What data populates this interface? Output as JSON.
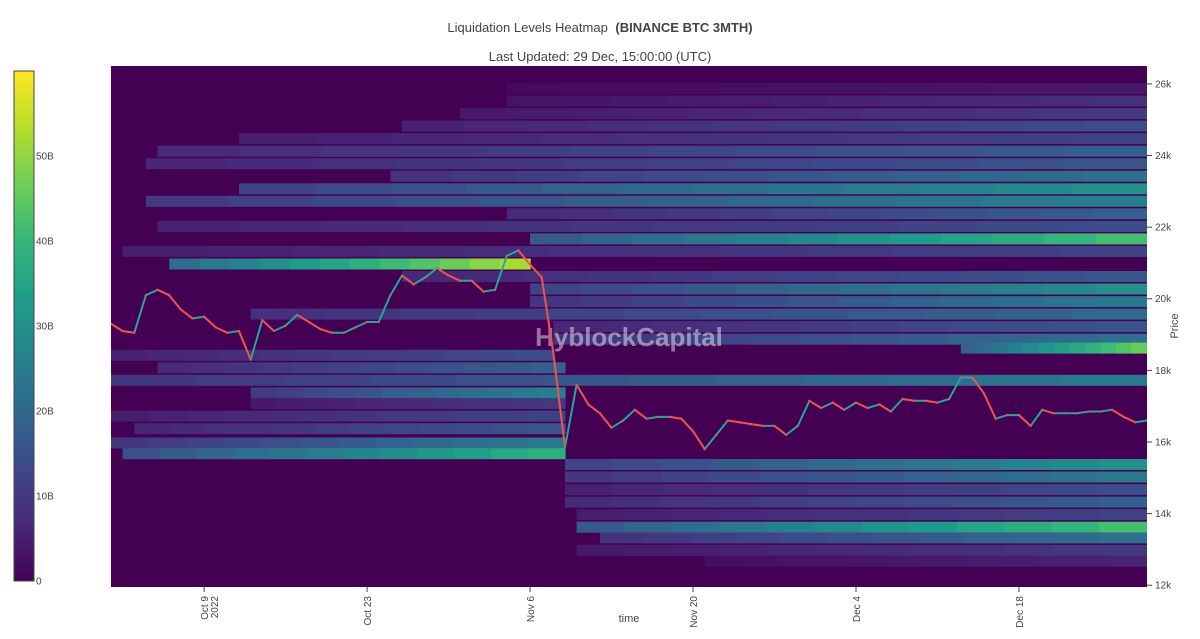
{
  "chart_data": {
    "type": "heatmap",
    "title": "Liquidation Levels Heatmap",
    "title_bold": "(BINANCE BTC 3MTH)",
    "subtitle": "Last Updated: 29 Dec, 15:00:00 (UTC)",
    "watermark": "HyblockCapital",
    "xlabel": "time",
    "ylabel": "Price",
    "x_range": [
      "2022-10-01",
      "2022-12-29"
    ],
    "x_ticks": [
      {
        "date": "2022-10-09",
        "label": "Oct 9",
        "sublabel": "2022"
      },
      {
        "date": "2022-10-23",
        "label": "Oct 23",
        "sublabel": ""
      },
      {
        "date": "2022-11-06",
        "label": "Nov 6",
        "sublabel": ""
      },
      {
        "date": "2022-11-20",
        "label": "Nov 20",
        "sublabel": ""
      },
      {
        "date": "2022-12-04",
        "label": "Dec 4",
        "sublabel": ""
      },
      {
        "date": "2022-12-18",
        "label": "Dec 18",
        "sublabel": ""
      }
    ],
    "y_range": [
      11950,
      26500
    ],
    "y_ticks": [
      {
        "value": 12000,
        "label": "12k"
      },
      {
        "value": 14000,
        "label": "14k"
      },
      {
        "value": 16000,
        "label": "16k"
      },
      {
        "value": 18000,
        "label": "18k"
      },
      {
        "value": 20000,
        "label": "20k"
      },
      {
        "value": 22000,
        "label": "22k"
      },
      {
        "value": 24000,
        "label": "24k"
      },
      {
        "value": 26000,
        "label": "26k"
      }
    ],
    "colorbar": {
      "range": [
        0,
        60
      ],
      "ticks": [
        {
          "value": 0,
          "label": "0"
        },
        {
          "value": 10,
          "label": "10B"
        },
        {
          "value": 20,
          "label": "20B"
        },
        {
          "value": 30,
          "label": "30B"
        },
        {
          "value": 40,
          "label": "40B"
        },
        {
          "value": 50,
          "label": "50B"
        }
      ],
      "colors": [
        "#440154",
        "#482878",
        "#3e4989",
        "#31688e",
        "#26828e",
        "#1f9e89",
        "#35b779",
        "#6ece58",
        "#b5de2b",
        "#fde725"
      ]
    },
    "background_color": "#440154",
    "price_series": [
      [
        "2022-10-01",
        19300
      ],
      [
        "2022-10-02",
        19100
      ],
      [
        "2022-10-03",
        19050
      ],
      [
        "2022-10-04",
        20100
      ],
      [
        "2022-10-05",
        20250
      ],
      [
        "2022-10-06",
        20100
      ],
      [
        "2022-10-07",
        19700
      ],
      [
        "2022-10-08",
        19450
      ],
      [
        "2022-10-09",
        19500
      ],
      [
        "2022-10-10",
        19200
      ],
      [
        "2022-10-11",
        19050
      ],
      [
        "2022-10-12",
        19100
      ],
      [
        "2022-10-13",
        18300
      ],
      [
        "2022-10-14",
        19400
      ],
      [
        "2022-10-15",
        19100
      ],
      [
        "2022-10-16",
        19250
      ],
      [
        "2022-10-17",
        19550
      ],
      [
        "2022-10-18",
        19350
      ],
      [
        "2022-10-19",
        19150
      ],
      [
        "2022-10-20",
        19050
      ],
      [
        "2022-10-21",
        19050
      ],
      [
        "2022-10-22",
        19200
      ],
      [
        "2022-10-23",
        19350
      ],
      [
        "2022-10-24",
        19350
      ],
      [
        "2022-10-25",
        20100
      ],
      [
        "2022-10-26",
        20650
      ],
      [
        "2022-10-27",
        20400
      ],
      [
        "2022-10-28",
        20600
      ],
      [
        "2022-10-29",
        20850
      ],
      [
        "2022-10-30",
        20650
      ],
      [
        "2022-10-31",
        20500
      ],
      [
        "2022-11-01",
        20500
      ],
      [
        "2022-11-02",
        20200
      ],
      [
        "2022-11-03",
        20250
      ],
      [
        "2022-11-04",
        21200
      ],
      [
        "2022-11-05",
        21350
      ],
      [
        "2022-11-06",
        20950
      ],
      [
        "2022-11-07",
        20600
      ],
      [
        "2022-11-08",
        18500
      ],
      [
        "2022-11-09",
        15850
      ],
      [
        "2022-11-10",
        17600
      ],
      [
        "2022-11-11",
        17050
      ],
      [
        "2022-11-12",
        16800
      ],
      [
        "2022-11-13",
        16400
      ],
      [
        "2022-11-14",
        16600
      ],
      [
        "2022-11-15",
        16900
      ],
      [
        "2022-11-16",
        16650
      ],
      [
        "2022-11-17",
        16700
      ],
      [
        "2022-11-18",
        16700
      ],
      [
        "2022-11-19",
        16650
      ],
      [
        "2022-11-20",
        16300
      ],
      [
        "2022-11-21",
        15800
      ],
      [
        "2022-11-22",
        16200
      ],
      [
        "2022-11-23",
        16600
      ],
      [
        "2022-11-24",
        16550
      ],
      [
        "2022-11-25",
        16500
      ],
      [
        "2022-11-26",
        16450
      ],
      [
        "2022-11-27",
        16450
      ],
      [
        "2022-11-28",
        16200
      ],
      [
        "2022-11-29",
        16450
      ],
      [
        "2022-11-30",
        17150
      ],
      [
        "2022-12-01",
        16950
      ],
      [
        "2022-12-02",
        17100
      ],
      [
        "2022-12-03",
        16900
      ],
      [
        "2022-12-04",
        17100
      ],
      [
        "2022-12-05",
        16950
      ],
      [
        "2022-12-06",
        17050
      ],
      [
        "2022-12-07",
        16850
      ],
      [
        "2022-12-08",
        17200
      ],
      [
        "2022-12-09",
        17150
      ],
      [
        "2022-12-10",
        17150
      ],
      [
        "2022-12-11",
        17100
      ],
      [
        "2022-12-12",
        17200
      ],
      [
        "2022-12-13",
        17800
      ],
      [
        "2022-12-14",
        17800
      ],
      [
        "2022-12-15",
        17350
      ],
      [
        "2022-12-16",
        16650
      ],
      [
        "2022-12-17",
        16750
      ],
      [
        "2022-12-18",
        16750
      ],
      [
        "2022-12-19",
        16450
      ],
      [
        "2022-12-20",
        16900
      ],
      [
        "2022-12-21",
        16800
      ],
      [
        "2022-12-22",
        16800
      ],
      [
        "2022-12-23",
        16800
      ],
      [
        "2022-12-24",
        16850
      ],
      [
        "2022-12-25",
        16850
      ],
      [
        "2022-12-26",
        16900
      ],
      [
        "2022-12-27",
        16700
      ],
      [
        "2022-12-28",
        16550
      ],
      [
        "2022-12-29",
        16600
      ]
    ],
    "liquidation_bands": [
      {
        "price": 25850,
        "start": "2022-11-04",
        "end": "2022-12-29",
        "value": 4
      },
      {
        "price": 25500,
        "start": "2022-11-04",
        "end": "2022-12-29",
        "value": 8
      },
      {
        "price": 25150,
        "start": "2022-10-31",
        "end": "2022-12-29",
        "value": 10
      },
      {
        "price": 24800,
        "start": "2022-10-26",
        "end": "2022-12-29",
        "value": 14
      },
      {
        "price": 24450,
        "start": "2022-10-12",
        "end": "2022-12-29",
        "value": 12
      },
      {
        "price": 24100,
        "start": "2022-10-05",
        "end": "2022-12-29",
        "value": 18
      },
      {
        "price": 23750,
        "start": "2022-10-04",
        "end": "2022-12-29",
        "value": 16
      },
      {
        "price": 23400,
        "start": "2022-10-25",
        "end": "2022-12-29",
        "value": 22
      },
      {
        "price": 23050,
        "start": "2022-10-12",
        "end": "2022-12-29",
        "value": 30
      },
      {
        "price": 22700,
        "start": "2022-10-04",
        "end": "2022-12-29",
        "value": 26
      },
      {
        "price": 22350,
        "start": "2022-11-04",
        "end": "2022-12-29",
        "value": 18
      },
      {
        "price": 22000,
        "start": "2022-10-05",
        "end": "2022-12-29",
        "value": 14
      },
      {
        "price": 21650,
        "start": "2022-11-06",
        "end": "2022-12-29",
        "value": 42
      },
      {
        "price": 21300,
        "start": "2022-10-02",
        "end": "2022-12-29",
        "value": 12
      },
      {
        "price": 20950,
        "start": "2022-10-06",
        "end": "2022-11-06",
        "value": 52
      },
      {
        "price": 20600,
        "start": "2022-10-26",
        "end": "2022-12-29",
        "value": 16
      },
      {
        "price": 20250,
        "start": "2022-11-06",
        "end": "2022-12-29",
        "value": 30
      },
      {
        "price": 19900,
        "start": "2022-11-06",
        "end": "2022-12-29",
        "value": 24
      },
      {
        "price": 19550,
        "start": "2022-10-13",
        "end": "2022-12-29",
        "value": 20
      },
      {
        "price": 19200,
        "start": "2022-11-08",
        "end": "2022-12-29",
        "value": 16
      },
      {
        "price": 18850,
        "start": "2022-11-08",
        "end": "2022-12-29",
        "value": 22
      },
      {
        "price": 18600,
        "start": "2022-12-13",
        "end": "2022-12-29",
        "value": 46
      },
      {
        "price": 18400,
        "start": "2022-10-01",
        "end": "2022-11-08",
        "value": 14
      },
      {
        "price": 18050,
        "start": "2022-10-05",
        "end": "2022-11-09",
        "value": 18
      },
      {
        "price": 17700,
        "start": "2022-10-01",
        "end": "2022-12-29",
        "value": 24
      },
      {
        "price": 17350,
        "start": "2022-10-13",
        "end": "2022-11-09",
        "value": 26
      },
      {
        "price": 17050,
        "start": "2022-10-13",
        "end": "2022-11-09",
        "value": 10
      },
      {
        "price": 16700,
        "start": "2022-10-01",
        "end": "2022-11-09",
        "value": 12
      },
      {
        "price": 16350,
        "start": "2022-10-03",
        "end": "2022-11-09",
        "value": 16
      },
      {
        "price": 15950,
        "start": "2022-10-01",
        "end": "2022-11-09",
        "value": 24
      },
      {
        "price": 15650,
        "start": "2022-10-02",
        "end": "2022-11-09",
        "value": 38
      },
      {
        "price": 15350,
        "start": "2022-11-09",
        "end": "2022-12-29",
        "value": 30
      },
      {
        "price": 15000,
        "start": "2022-11-09",
        "end": "2022-12-29",
        "value": 24
      },
      {
        "price": 14650,
        "start": "2022-11-09",
        "end": "2022-12-29",
        "value": 14
      },
      {
        "price": 14300,
        "start": "2022-11-09",
        "end": "2022-12-29",
        "value": 18
      },
      {
        "price": 13950,
        "start": "2022-11-10",
        "end": "2022-12-29",
        "value": 12
      },
      {
        "price": 13600,
        "start": "2022-11-10",
        "end": "2022-12-29",
        "value": 42
      },
      {
        "price": 13300,
        "start": "2022-11-12",
        "end": "2022-12-29",
        "value": 22
      },
      {
        "price": 12950,
        "start": "2022-11-10",
        "end": "2022-12-29",
        "value": 10
      },
      {
        "price": 12650,
        "start": "2022-11-21",
        "end": "2022-12-29",
        "value": 6
      }
    ],
    "price_line_colors": [
      "#ef5350",
      "#26a69a"
    ]
  }
}
